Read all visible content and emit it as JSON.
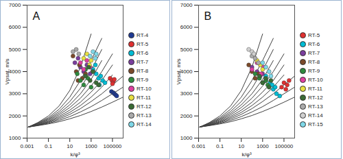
{
  "chart_data": [
    {
      "type": "scatter",
      "title": "A",
      "x_label": "k/φ³",
      "y_label": "Vpsat, m/s",
      "log": "x",
      "grid": false,
      "xlim": [
        0.001,
        1000000
      ],
      "xticks": [
        0.001,
        0.1,
        10,
        1000,
        100000
      ],
      "ylim": [
        1000,
        7000
      ],
      "yticks": [
        1000,
        2000,
        3000,
        4000,
        5000,
        6000,
        7000
      ],
      "series": [
        {
          "type": "line",
          "color": "#404040",
          "x": [
            0.0013,
            0.01,
            0.1,
            1,
            10,
            100,
            1000
          ],
          "values": [
            1500,
            1700,
            2000,
            2450,
            3150,
            4200,
            5700
          ]
        },
        {
          "type": "line",
          "color": "#404040",
          "x": [
            0.0013,
            0.01,
            0.1,
            1,
            10,
            100,
            1000,
            10000
          ],
          "values": [
            1500,
            1680,
            1930,
            2300,
            2850,
            3600,
            4500,
            5500
          ]
        },
        {
          "type": "line",
          "color": "#404040",
          "x": [
            0.0013,
            0.01,
            0.1,
            1,
            10,
            100,
            1000,
            10000
          ],
          "values": [
            1500,
            1660,
            1880,
            2200,
            2650,
            3250,
            4050,
            5000
          ]
        },
        {
          "type": "line",
          "color": "#404040",
          "x": [
            0.0013,
            0.01,
            0.1,
            1,
            10,
            100,
            1000,
            10000
          ],
          "values": [
            1500,
            1640,
            1840,
            2120,
            2500,
            3000,
            3650,
            4500
          ]
        },
        {
          "type": "line",
          "color": "#404040",
          "x": [
            0.0013,
            0.01,
            0.1,
            1,
            10,
            100,
            1000,
            10000,
            100000
          ],
          "values": [
            1500,
            1620,
            1800,
            2050,
            2380,
            2800,
            3350,
            4000,
            4800
          ]
        },
        {
          "type": "line",
          "color": "#404040",
          "x": [
            0.0013,
            0.01,
            0.1,
            1,
            10,
            100,
            1000,
            10000,
            100000
          ],
          "values": [
            1500,
            1600,
            1760,
            1980,
            2260,
            2620,
            3080,
            3600,
            4300
          ]
        },
        {
          "type": "line",
          "color": "#404040",
          "x": [
            0.0013,
            0.01,
            0.1,
            1,
            10,
            100,
            1000,
            10000,
            100000
          ],
          "values": [
            1500,
            1590,
            1730,
            1920,
            2160,
            2470,
            2850,
            3300,
            3850
          ]
        },
        {
          "type": "line",
          "color": "#404040",
          "x": [
            0.0013,
            0.01,
            0.1,
            1,
            10,
            100,
            1000,
            10000,
            100000,
            1000000
          ],
          "values": [
            1500,
            1580,
            1700,
            1860,
            2070,
            2330,
            2650,
            3000,
            3400,
            3800
          ]
        },
        {
          "type": "line",
          "color": "#404040",
          "x": [
            0.0013,
            0.01,
            0.1,
            1,
            10,
            100,
            1000,
            10000,
            100000,
            1000000
          ],
          "values": [
            1500,
            1570,
            1670,
            1800,
            1970,
            2180,
            2420,
            2700,
            3000,
            3300
          ]
        },
        {
          "type": "line",
          "color": "#404040",
          "x": [
            0.0013,
            0.01,
            0.1,
            1,
            10,
            100,
            1000,
            10000,
            100000,
            1000000
          ],
          "values": [
            1500,
            1560,
            1640,
            1740,
            1870,
            2020,
            2200,
            2400,
            2620,
            2850
          ]
        },
        {
          "name": "RT-4",
          "color": "#1f3a93",
          "marker": "circle",
          "x": [
            80000,
            120000,
            150000,
            200000,
            250000
          ],
          "values": [
            3100,
            3050,
            3000,
            2950,
            2900
          ]
        },
        {
          "name": "RT-5",
          "color": "#e03030",
          "marker": "circle",
          "x": [
            60000,
            90000,
            120000,
            150000,
            100000
          ],
          "values": [
            3700,
            3600,
            3550,
            3650,
            3450
          ]
        },
        {
          "name": "RT-6",
          "color": "#00bcd4",
          "marker": "circle",
          "x": [
            1500,
            3000,
            5000,
            8000,
            12000,
            20000,
            2500,
            6000
          ],
          "values": [
            4100,
            3900,
            3700,
            3800,
            3600,
            3500,
            4300,
            3400
          ]
        },
        {
          "name": "RT-7",
          "color": "#7a3e9d",
          "marker": "circle",
          "x": [
            30,
            60,
            100,
            200,
            400,
            800
          ],
          "values": [
            4400,
            4600,
            4200,
            4000,
            4300,
            3900
          ]
        },
        {
          "name": "RT-8",
          "color": "#7b4a2a",
          "marker": "circle",
          "x": [
            20,
            40,
            80,
            150,
            300,
            60
          ],
          "values": [
            4700,
            4000,
            4300,
            3700,
            3900,
            3600
          ]
        },
        {
          "name": "RT-9",
          "color": "#2e8b3e",
          "marker": "circle",
          "x": [
            50,
            100,
            200,
            500,
            1000,
            300
          ],
          "values": [
            3900,
            3600,
            3400,
            3700,
            3300,
            4100
          ]
        },
        {
          "name": "RT-10",
          "color": "#e040a0",
          "marker": "circle",
          "x": [
            100,
            200,
            400,
            800,
            1500
          ],
          "values": [
            4400,
            4100,
            4500,
            4200,
            4000
          ]
        },
        {
          "name": "RT-11",
          "color": "#e8e040",
          "marker": "circle",
          "x": [
            200,
            400,
            700,
            1000
          ],
          "values": [
            4600,
            4800,
            4300,
            4500
          ]
        },
        {
          "name": "RT-12",
          "color": "#3a6b35",
          "marker": "circle",
          "x": [
            300,
            800,
            1500,
            3000,
            5000,
            600
          ],
          "values": [
            3800,
            3600,
            4000,
            3500,
            3400,
            4200
          ]
        },
        {
          "name": "RT-13",
          "color": "#aaaaaa",
          "marker": "circle",
          "x": [
            20,
            40,
            70
          ],
          "values": [
            4900,
            5000,
            4800
          ]
        },
        {
          "name": "RT-14",
          "color": "#7fd8e8",
          "marker": "circle",
          "x": [
            800,
            1500,
            2500,
            3000
          ],
          "values": [
            4700,
            4900,
            4600,
            4800
          ]
        }
      ]
    },
    {
      "type": "scatter",
      "title": "B",
      "x_label": "k/φ³",
      "y_label": "Vpsat, m/s",
      "log": "x",
      "grid": false,
      "xlim": [
        0.001,
        1000000
      ],
      "xticks": [
        0.001,
        0.1,
        10,
        1000,
        100000
      ],
      "ylim": [
        1000,
        7000
      ],
      "yticks": [
        1000,
        2000,
        3000,
        4000,
        5000,
        6000,
        7000
      ],
      "series": [
        {
          "type": "line",
          "color": "#404040",
          "x": [
            0.0013,
            0.01,
            0.1,
            1,
            10,
            100,
            1000
          ],
          "values": [
            1500,
            1700,
            2000,
            2450,
            3150,
            4200,
            5700
          ]
        },
        {
          "type": "line",
          "color": "#404040",
          "x": [
            0.0013,
            0.01,
            0.1,
            1,
            10,
            100,
            1000,
            10000
          ],
          "values": [
            1500,
            1680,
            1930,
            2300,
            2850,
            3600,
            4500,
            5500
          ]
        },
        {
          "type": "line",
          "color": "#404040",
          "x": [
            0.0013,
            0.01,
            0.1,
            1,
            10,
            100,
            1000,
            10000
          ],
          "values": [
            1500,
            1660,
            1880,
            2200,
            2650,
            3250,
            4050,
            5000
          ]
        },
        {
          "type": "line",
          "color": "#404040",
          "x": [
            0.0013,
            0.01,
            0.1,
            1,
            10,
            100,
            1000,
            10000
          ],
          "values": [
            1500,
            1640,
            1840,
            2120,
            2500,
            3000,
            3650,
            4500
          ]
        },
        {
          "type": "line",
          "color": "#404040",
          "x": [
            0.0013,
            0.01,
            0.1,
            1,
            10,
            100,
            1000,
            10000,
            100000
          ],
          "values": [
            1500,
            1620,
            1800,
            2050,
            2380,
            2800,
            3350,
            4000,
            4800
          ]
        },
        {
          "type": "line",
          "color": "#404040",
          "x": [
            0.0013,
            0.01,
            0.1,
            1,
            10,
            100,
            1000,
            10000,
            100000
          ],
          "values": [
            1500,
            1600,
            1760,
            1980,
            2260,
            2620,
            3080,
            3600,
            4300
          ]
        },
        {
          "type": "line",
          "color": "#404040",
          "x": [
            0.0013,
            0.01,
            0.1,
            1,
            10,
            100,
            1000,
            10000,
            100000
          ],
          "values": [
            1500,
            1590,
            1730,
            1920,
            2160,
            2470,
            2850,
            3300,
            3850
          ]
        },
        {
          "type": "line",
          "color": "#404040",
          "x": [
            0.0013,
            0.01,
            0.1,
            1,
            10,
            100,
            1000,
            10000,
            100000,
            1000000
          ],
          "values": [
            1500,
            1580,
            1700,
            1860,
            2070,
            2330,
            2650,
            3000,
            3400,
            3800
          ]
        },
        {
          "type": "line",
          "color": "#404040",
          "x": [
            0.0013,
            0.01,
            0.1,
            1,
            10,
            100,
            1000,
            10000,
            100000,
            1000000
          ],
          "values": [
            1500,
            1570,
            1670,
            1800,
            1970,
            2180,
            2420,
            2700,
            3000,
            3300
          ]
        },
        {
          "type": "line",
          "color": "#404040",
          "x": [
            0.0013,
            0.01,
            0.1,
            1,
            10,
            100,
            1000,
            10000,
            100000,
            1000000
          ],
          "values": [
            1500,
            1560,
            1640,
            1740,
            1870,
            2020,
            2200,
            2400,
            2620,
            2850
          ]
        },
        {
          "name": "RT-5",
          "color": "#e03030",
          "marker": "circle",
          "x": [
            60000,
            100000,
            150000,
            200000,
            300000
          ],
          "values": [
            3300,
            3500,
            3200,
            3400,
            3600
          ]
        },
        {
          "name": "RT-6",
          "color": "#00bcd4",
          "marker": "circle",
          "x": [
            2000,
            5000,
            10000,
            20000,
            40000,
            8000,
            15000
          ],
          "values": [
            3800,
            3500,
            3200,
            3000,
            2900,
            3400,
            3300
          ]
        },
        {
          "name": "RT-7",
          "color": "#7a3e9d",
          "marker": "circle",
          "x": [
            100,
            300,
            600,
            1000,
            2000
          ],
          "values": [
            4200,
            4000,
            3800,
            3900,
            3600
          ]
        },
        {
          "name": "RT-8",
          "color": "#7b4a2a",
          "marker": "circle",
          "x": [
            50,
            100,
            200,
            400
          ],
          "values": [
            4300,
            4000,
            3700,
            3900
          ]
        },
        {
          "name": "RT-9",
          "color": "#2e8b3e",
          "marker": "circle",
          "x": [
            200,
            500,
            1000,
            2000,
            3000
          ],
          "values": [
            3900,
            3700,
            3500,
            3600,
            3400
          ]
        },
        {
          "name": "RT-10",
          "color": "#e040a0",
          "marker": "circle",
          "x": [
            100,
            300,
            700,
            1200
          ],
          "values": [
            4100,
            4400,
            3900,
            4200
          ]
        },
        {
          "name": "RT-11",
          "color": "#e8e040",
          "marker": "circle",
          "x": [
            300,
            600,
            1000
          ],
          "values": [
            4500,
            4300,
            4100
          ]
        },
        {
          "name": "RT-12",
          "color": "#3a6b35",
          "marker": "circle",
          "x": [
            500,
            1000,
            2000,
            4000,
            6000
          ],
          "values": [
            3800,
            3500,
            3700,
            3300,
            3600
          ]
        },
        {
          "name": "RT-13",
          "color": "#aaaaaa",
          "marker": "circle",
          "x": [
            100,
            200,
            400
          ],
          "values": [
            4700,
            4600,
            4400
          ]
        },
        {
          "name": "RT-14",
          "color": "#d0d0d0",
          "marker": "circle",
          "x": [
            50,
            100,
            150
          ],
          "values": [
            5000,
            4900,
            4800
          ]
        },
        {
          "name": "RT-15",
          "color": "#7fd8e8",
          "marker": "circle",
          "x": [
            1000,
            2000,
            4000,
            6000
          ],
          "values": [
            4400,
            4200,
            4000,
            3800
          ]
        }
      ]
    }
  ]
}
